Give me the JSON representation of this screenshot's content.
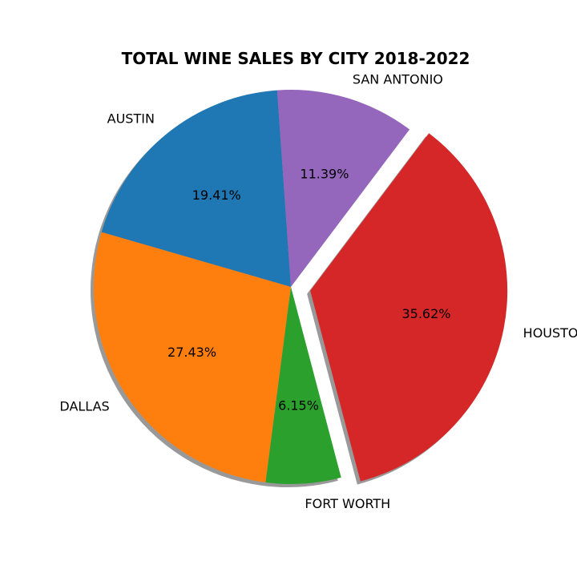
{
  "chart_data": {
    "type": "pie",
    "title": "TOTAL WINE SALES BY CITY 2018-2022",
    "slices": [
      {
        "label": "AUSTIN",
        "percent": 19.41,
        "percent_label": "19.41%",
        "color": "#1f77b4",
        "explode": false
      },
      {
        "label": "DALLAS",
        "percent": 27.43,
        "percent_label": "27.43%",
        "color": "#ff7f0e",
        "explode": false
      },
      {
        "label": "FORT WORTH",
        "percent": 6.15,
        "percent_label": "6.15%",
        "color": "#2ca02c",
        "explode": false
      },
      {
        "label": "HOUSTON",
        "percent": 35.62,
        "percent_label": "35.62%",
        "color": "#d62728",
        "explode": true
      },
      {
        "label": "SAN ANTONIO",
        "percent": 11.39,
        "percent_label": "11.39%",
        "color": "#9467bd",
        "explode": false
      }
    ],
    "shadow": true,
    "counterclock": true
  }
}
